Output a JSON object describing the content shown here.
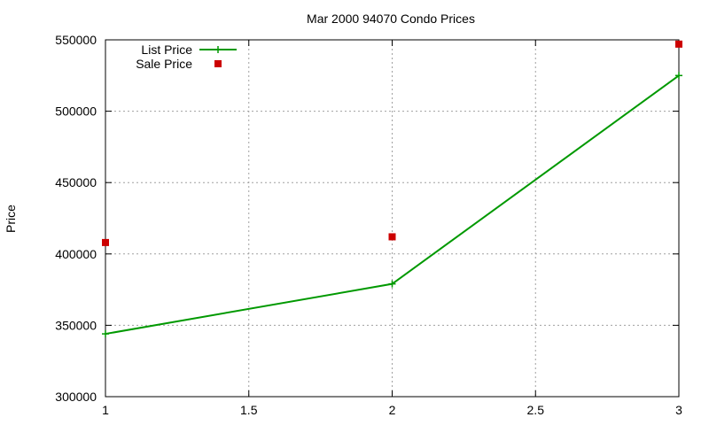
{
  "chart_data": {
    "type": "line",
    "title": "Mar 2000 94070 Condo Prices",
    "xlabel": "",
    "ylabel": "Price",
    "xlim": [
      1,
      3
    ],
    "ylim": [
      300000,
      550000
    ],
    "x_ticks": [
      1,
      1.5,
      2,
      2.5,
      3
    ],
    "x_tick_labels": [
      "1",
      "1.5",
      "2",
      "2.5",
      "3"
    ],
    "y_ticks": [
      300000,
      350000,
      400000,
      450000,
      500000,
      550000
    ],
    "y_tick_labels": [
      "300000",
      "350000",
      "400000",
      "450000",
      "500000",
      "550000"
    ],
    "grid": true,
    "legend_position": "top-left",
    "series": [
      {
        "name": "List Price",
        "style": "linespoints",
        "marker": "plus",
        "color": "#009900",
        "x": [
          1,
          2,
          3
        ],
        "y": [
          344000,
          379000,
          525000
        ]
      },
      {
        "name": "Sale Price",
        "style": "points",
        "marker": "square",
        "color": "#cc0000",
        "x": [
          1,
          2,
          3
        ],
        "y": [
          408000,
          412000,
          547000
        ]
      }
    ]
  }
}
